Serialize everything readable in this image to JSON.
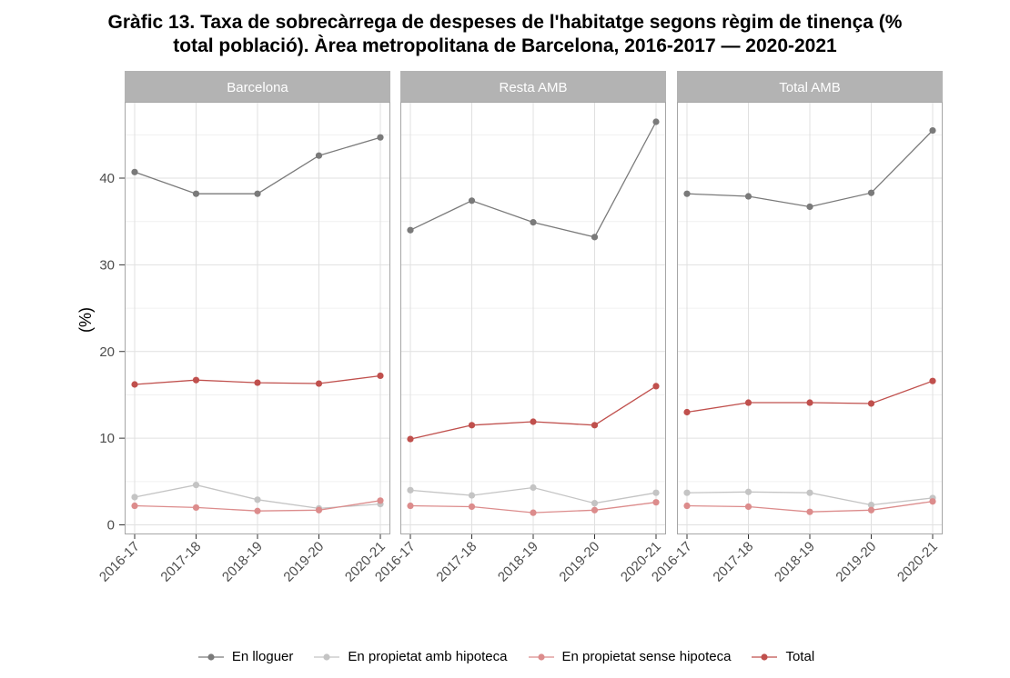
{
  "title_line1": "Gràfic 13. Taxa de sobrecàrrega de despeses de l'habitatge segons règim de tinença (%",
  "title_line2": "total població). Àrea metropolitana de Barcelona, 2016-2017 — 2020-2021",
  "chart_data": {
    "type": "line",
    "ylabel": "(%)",
    "ylim": [
      0,
      48
    ],
    "yticks": [
      0,
      10,
      20,
      30,
      40
    ],
    "categories": [
      "2016-17",
      "2017-18",
      "2018-19",
      "2019-20",
      "2020-21"
    ],
    "grid": true,
    "legend_position": "bottom",
    "panels": [
      {
        "name": "Barcelona",
        "series": [
          {
            "name": "En lloguer",
            "values": [
              40.7,
              38.2,
              38.2,
              42.6,
              44.7
            ]
          },
          {
            "name": "En propietat amb hipoteca",
            "values": [
              3.2,
              4.6,
              2.9,
              1.9,
              2.4
            ]
          },
          {
            "name": "En propietat sense hipoteca",
            "values": [
              2.2,
              2.0,
              1.6,
              1.7,
              2.8
            ]
          },
          {
            "name": "Total",
            "values": [
              16.2,
              16.7,
              16.4,
              16.3,
              17.2
            ]
          }
        ]
      },
      {
        "name": "Resta AMB",
        "series": [
          {
            "name": "En lloguer",
            "values": [
              34.0,
              37.4,
              34.9,
              33.2,
              46.5
            ]
          },
          {
            "name": "En propietat amb hipoteca",
            "values": [
              4.0,
              3.4,
              4.3,
              2.5,
              3.7
            ]
          },
          {
            "name": "En propietat sense hipoteca",
            "values": [
              2.2,
              2.1,
              1.4,
              1.7,
              2.6
            ]
          },
          {
            "name": "Total",
            "values": [
              9.9,
              11.5,
              11.9,
              11.5,
              16.0
            ]
          }
        ]
      },
      {
        "name": "Total AMB",
        "series": [
          {
            "name": "En lloguer",
            "values": [
              38.2,
              37.9,
              36.7,
              38.3,
              45.5
            ]
          },
          {
            "name": "En propietat amb hipoteca",
            "values": [
              3.7,
              3.8,
              3.7,
              2.3,
              3.1
            ]
          },
          {
            "name": "En propietat sense hipoteca",
            "values": [
              2.2,
              2.1,
              1.5,
              1.7,
              2.7
            ]
          },
          {
            "name": "Total",
            "values": [
              13.0,
              14.1,
              14.1,
              14.0,
              16.6
            ]
          }
        ]
      }
    ],
    "series_colors": {
      "En lloguer": "#7a7a7a",
      "En propietat amb hipoteca": "#c4c4c4",
      "En propietat sense hipoteca": "#dc8c8c",
      "Total": "#c0504d"
    }
  },
  "colors": {
    "strip_bg": "#b3b3b3",
    "strip_text": "#ffffff",
    "grid_major": "#e0e0e0",
    "grid_minor": "#f0f0f0",
    "panel_border": "#a6a6a6",
    "axis_text": "#4d4d4d"
  }
}
